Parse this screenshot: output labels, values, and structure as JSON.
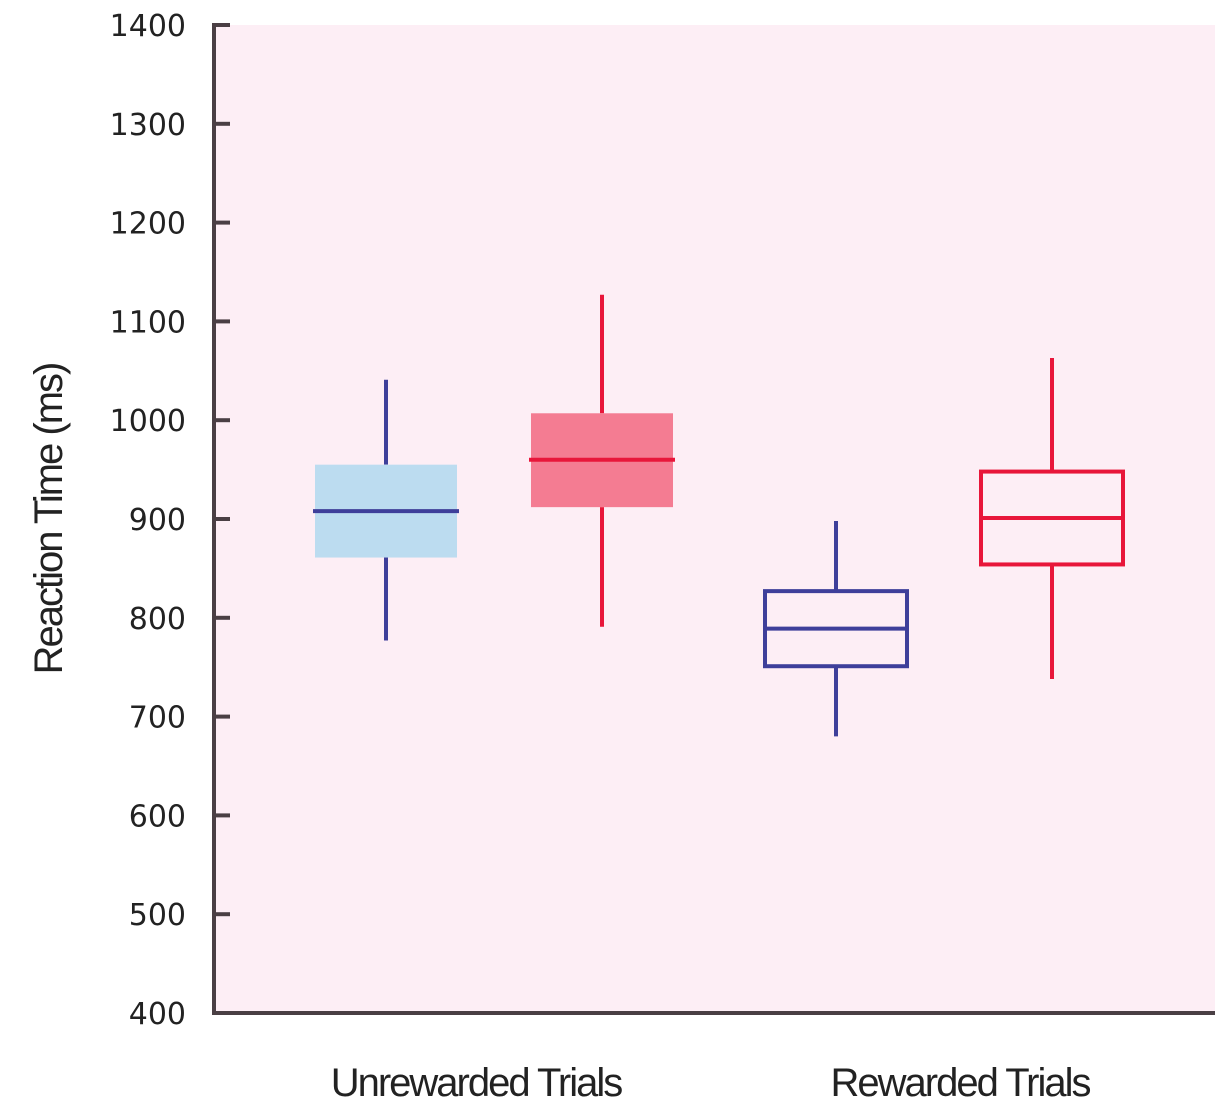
{
  "chart_data": {
    "type": "box",
    "ylabel": "Reaction Time (ms)",
    "xlabel": "",
    "ylim": [
      400,
      1400
    ],
    "yticks": [
      400,
      500,
      600,
      700,
      800,
      900,
      1000,
      1100,
      1200,
      1300,
      1400
    ],
    "categories": [
      "Unrewarded Trials",
      "Rewarded Trials"
    ],
    "grid": false,
    "background_color": "#fdeef5",
    "axis_color": "#4a3f44",
    "boxes": [
      {
        "category": "Unrewarded Trials",
        "style": "filled",
        "color": "#3e3f9a",
        "fill": "#bcdcf0",
        "whisker_low": 777,
        "q1": 861,
        "median": 908,
        "q3": 955,
        "whisker_high": 1041
      },
      {
        "category": "Unrewarded Trials",
        "style": "filled",
        "color": "#e8163a",
        "fill": "#f47c92",
        "whisker_low": 791,
        "q1": 912,
        "median": 960,
        "q3": 1007,
        "whisker_high": 1127
      },
      {
        "category": "Rewarded Trials",
        "style": "outline",
        "color": "#3e3f9a",
        "fill": "none",
        "whisker_low": 680,
        "q1": 751,
        "median": 789,
        "q3": 827,
        "whisker_high": 898
      },
      {
        "category": "Rewarded Trials",
        "style": "outline",
        "color": "#e8163a",
        "fill": "none",
        "whisker_low": 738,
        "q1": 854,
        "median": 901,
        "q3": 948,
        "whisker_high": 1063
      }
    ]
  }
}
